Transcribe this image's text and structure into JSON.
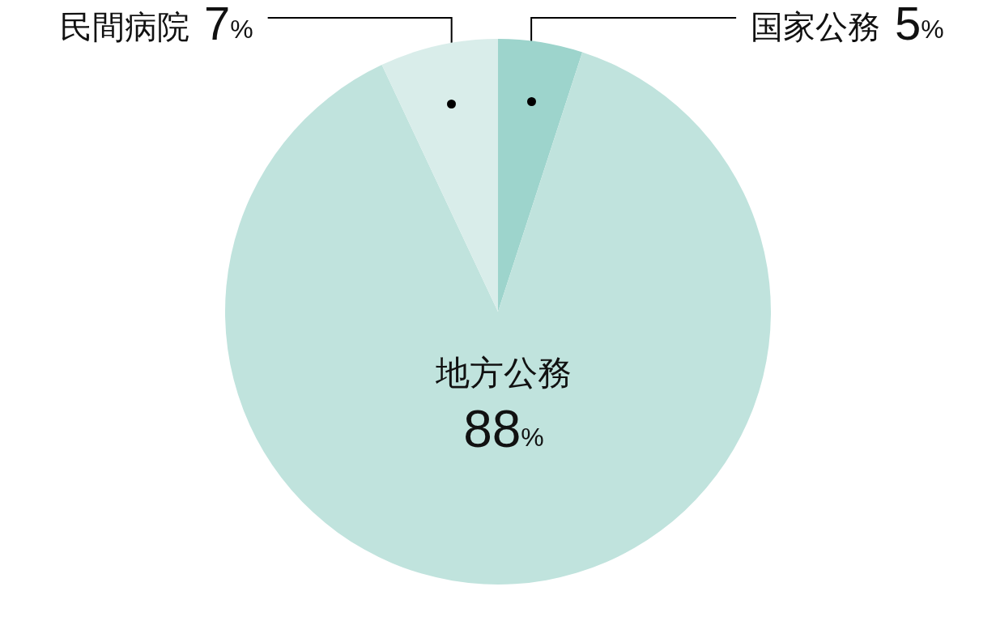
{
  "chart_data": {
    "type": "pie",
    "categories": [
      "国家公務",
      "地方公務",
      "民間病院"
    ],
    "values": [
      5,
      88,
      7
    ],
    "colors": [
      "#9dd4cc",
      "#c0e3dd",
      "#d9edea"
    ],
    "value_labels": [
      "5%",
      "88%",
      "7%"
    ]
  }
}
